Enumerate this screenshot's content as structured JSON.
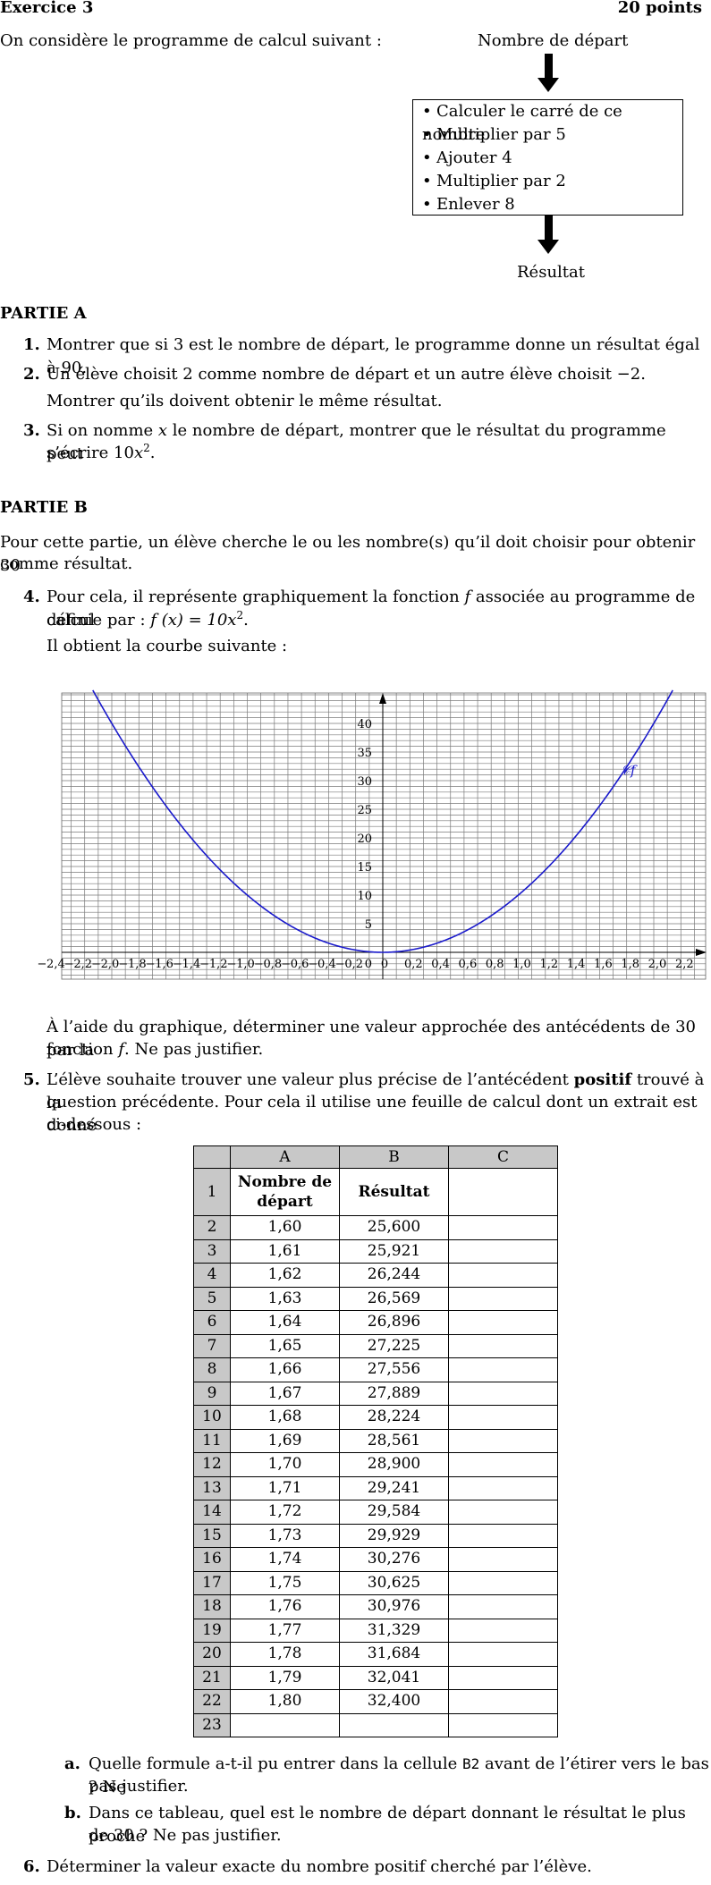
{
  "header": {
    "title": "Exercice 3",
    "points": "20 points"
  },
  "intro": "On considère le programme de calcul suivant :",
  "flowchart": {
    "start_label": "Nombre de départ",
    "steps": [
      "Calculer le carré de ce nombre",
      "Multiplier par 5",
      "Ajouter 4",
      "Multiplier par 2",
      "Enlever 8"
    ],
    "end_label": "Résultat"
  },
  "partA": {
    "title": "PARTIE A",
    "q1": {
      "num": "1.",
      "text": "Montrer que si 3 est le nombre de départ, le programme donne un résultat égal à 90."
    },
    "q2": {
      "num": "2.",
      "line1": "Un élève choisit 2 comme nombre de départ et un autre élève choisit −2.",
      "line2": "Montrer qu’ils doivent obtenir le même résultat."
    },
    "q3": {
      "num": "3.",
      "line1_a": "Si on nomme ",
      "var": "x",
      "line1_b": " le nombre de départ, montrer que le résultat du programme peut",
      "line2_a": "s’écrire 10",
      "line2_b": "."
    }
  },
  "partB": {
    "title": "PARTIE B",
    "intro_line1": "Pour cette partie, un élève cherche le ou les nombre(s) qu’il doit choisir pour obtenir 30",
    "intro_line2": "comme résultat.",
    "q4": {
      "num": "4.",
      "line1": "Pour cela, il représente graphiquement la fonction ",
      "f": "f",
      "line1_end": " associée au programme de calcul",
      "line2_a": "définie par : ",
      "line2_fx": "f (x) = 10x",
      "line2_b": ".",
      "line3": "Il obtient la courbe suivante :",
      "after1": "À l’aide du graphique, déterminer une valeur approchée des antécédents de 30 par la",
      "after2_a": "fonction ",
      "after2_b": ". Ne pas justifier."
    },
    "q5": {
      "num": "5.",
      "line1_a": "L’élève souhaite trouver une valeur plus précise de l’antécédent ",
      "line1_bold": "positif",
      "line1_b": " trouvé à la",
      "line2": "question précédente. Pour cela il utilise une feuille de calcul dont un extrait est donné",
      "line3": "ci-dessous :",
      "qa": {
        "label": "a.",
        "line1_a": "Quelle formule a-t-il pu entrer dans la cellule ",
        "cell": "B2",
        "line1_b": " avant de l’étirer vers le bas ? Ne",
        "line2": "pas justifier."
      },
      "qb": {
        "label": "b.",
        "line1": "Dans ce tableau, quel est le nombre de départ donnant le résultat le plus proche",
        "line2": "de 30 ? Ne pas justifier."
      }
    },
    "q6": {
      "num": "6.",
      "text": "Déterminer la valeur exacte du nombre positif cherché par l’élève."
    }
  },
  "chart_data": {
    "type": "line",
    "function": "f(x) = 10x^2",
    "curve_label": "𝒞f",
    "xlim": [
      -2.4,
      2.2
    ],
    "ylim": [
      0,
      40
    ],
    "x_ticks": [
      "2,4",
      "2,2",
      "2,0",
      "1,8",
      "1,6",
      "1,4",
      "1,2",
      "1,0",
      "0,8",
      "0,6",
      "0,4",
      "0,2",
      "0",
      "0,2",
      "0,4",
      "0,6",
      "0,8",
      "1,0",
      "1,2",
      "1,4",
      "1,6",
      "1,8",
      "2,0",
      "2,2"
    ],
    "y_ticks": [
      "5",
      "10",
      "15",
      "20",
      "25",
      "30",
      "35",
      "40"
    ],
    "origin_label": "0",
    "grid": true,
    "curve_color": "#1a1acc"
  },
  "spreadsheet": {
    "col_headers": [
      "A",
      "B",
      "C"
    ],
    "header_row": {
      "num": "1",
      "a": "Nombre de départ",
      "b": "Résultat",
      "c": ""
    },
    "rows": [
      {
        "n": "2",
        "a": "1,60",
        "b": "25,600"
      },
      {
        "n": "3",
        "a": "1,61",
        "b": "25,921"
      },
      {
        "n": "4",
        "a": "1,62",
        "b": "26,244"
      },
      {
        "n": "5",
        "a": "1,63",
        "b": "26,569"
      },
      {
        "n": "6",
        "a": "1,64",
        "b": "26,896"
      },
      {
        "n": "7",
        "a": "1,65",
        "b": "27,225"
      },
      {
        "n": "8",
        "a": "1,66",
        "b": "27,556"
      },
      {
        "n": "9",
        "a": "1,67",
        "b": "27,889"
      },
      {
        "n": "10",
        "a": "1,68",
        "b": "28,224"
      },
      {
        "n": "11",
        "a": "1,69",
        "b": "28,561"
      },
      {
        "n": "12",
        "a": "1,70",
        "b": "28,900"
      },
      {
        "n": "13",
        "a": "1,71",
        "b": "29,241"
      },
      {
        "n": "14",
        "a": "1,72",
        "b": "29,584"
      },
      {
        "n": "15",
        "a": "1,73",
        "b": "29,929"
      },
      {
        "n": "16",
        "a": "1,74",
        "b": "30,276"
      },
      {
        "n": "17",
        "a": "1,75",
        "b": "30,625"
      },
      {
        "n": "18",
        "a": "1,76",
        "b": "30,976"
      },
      {
        "n": "19",
        "a": "1,77",
        "b": "31,329"
      },
      {
        "n": "20",
        "a": "1,78",
        "b": "31,684"
      },
      {
        "n": "21",
        "a": "1,79",
        "b": "32,041"
      },
      {
        "n": "22",
        "a": "1,80",
        "b": "32,400"
      },
      {
        "n": "23",
        "a": "",
        "b": ""
      }
    ]
  }
}
